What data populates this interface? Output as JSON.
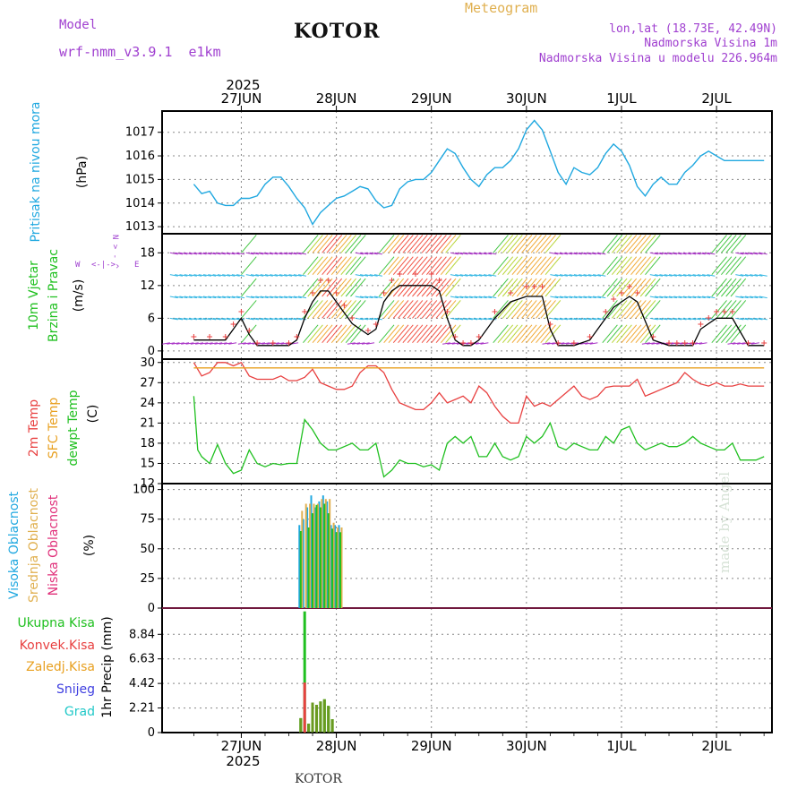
{
  "header": {
    "model_label": "Model",
    "model_name": "wrf-nmm_v3.9.1  e1km",
    "station": "KOTOR",
    "product": "Meteogram",
    "coords": "lon,lat (18.73E, 42.49N)",
    "elevation": "Nadmorska Visina 1m",
    "model_elevation": "Nadmorska Visina u modelu 226.964m",
    "watermark": "made by Angel",
    "footer_station": "KOTOR"
  },
  "colors": {
    "purple": "#a040d0",
    "gold": "#e0b050",
    "pressure": "#20a8e0",
    "temp": "#e84040",
    "sfc": "#e8a020",
    "dewpt": "#20c020",
    "wind_black": "#000000"
  },
  "chart_data": [
    {
      "type": "line",
      "id": "pressure",
      "ylabel": [
        "Pritisak na nivou mora",
        "(hPa)"
      ],
      "yticks": [
        1013,
        1014,
        1015,
        1016,
        1017
      ],
      "ylim": [
        1012.7,
        1017.9
      ],
      "grid": true,
      "series": [
        {
          "name": "pressure",
          "color": "#20a8e0",
          "x": [
            0,
            2,
            4,
            6,
            8,
            10,
            12,
            14,
            16,
            18,
            20,
            22,
            24,
            26,
            28,
            30,
            32,
            34,
            36,
            38,
            40,
            42,
            44,
            46,
            48,
            50,
            52,
            54,
            56,
            58,
            60,
            62,
            64,
            66,
            68,
            70,
            72,
            74,
            76,
            78,
            80,
            82,
            84,
            86,
            88,
            90,
            92,
            94,
            96,
            98,
            100,
            102,
            104,
            106,
            108,
            110,
            112,
            114,
            116,
            118,
            120,
            122,
            124,
            126,
            128,
            130,
            132,
            134,
            136,
            138,
            140,
            142,
            144
          ],
          "values": [
            1014.8,
            1014.4,
            1014.5,
            1014.0,
            1013.9,
            1013.9,
            1014.2,
            1014.2,
            1014.3,
            1014.8,
            1015.1,
            1015.1,
            1014.7,
            1014.2,
            1013.8,
            1013.1,
            1013.6,
            1013.9,
            1014.2,
            1014.3,
            1014.5,
            1014.7,
            1014.6,
            1014.1,
            1013.8,
            1013.9,
            1014.6,
            1014.9,
            1015.0,
            1015.0,
            1015.3,
            1015.8,
            1016.3,
            1016.1,
            1015.5,
            1015.0,
            1014.7,
            1015.2,
            1015.5,
            1015.5,
            1015.8,
            1016.3,
            1017.1,
            1017.5,
            1017.1,
            1016.2,
            1015.3,
            1014.8,
            1015.5,
            1015.3,
            1015.2,
            1015.5,
            1016.1,
            1016.5,
            1016.2,
            1015.6,
            1014.7,
            1014.3,
            1014.8,
            1015.1,
            1014.8,
            1014.8,
            1015.3,
            1015.6,
            1016.0,
            1016.2,
            1016.0,
            1015.8,
            1015.8,
            1015.8,
            1015.8,
            1015.8,
            1015.8
          ]
        }
      ]
    },
    {
      "type": "line",
      "id": "wind",
      "ylabel": [
        "10m Vjetar",
        "Brzina i Pravac",
        "(m/s)"
      ],
      "direction_labels": [
        "W",
        "<",
        "|",
        ">",
        "E",
        "N",
        "S"
      ],
      "yticks": [
        0,
        6,
        12,
        18
      ],
      "ylim": [
        -1.5,
        21.5
      ],
      "grid": true,
      "series": [
        {
          "name": "wind speed",
          "color": "#000000",
          "x": [
            0,
            4,
            8,
            10,
            12,
            14,
            16,
            20,
            24,
            26,
            28,
            30,
            32,
            34,
            36,
            38,
            40,
            44,
            46,
            48,
            50,
            52,
            56,
            60,
            62,
            64,
            66,
            68,
            70,
            72,
            76,
            80,
            84,
            86,
            88,
            90,
            92,
            96,
            100,
            104,
            106,
            108,
            110,
            112,
            116,
            120,
            122,
            124,
            126,
            128,
            130,
            132,
            134,
            136,
            140,
            144
          ],
          "values": [
            2,
            2,
            2,
            4,
            6,
            3,
            1,
            1,
            1,
            2,
            6,
            9,
            11,
            11,
            9,
            7,
            5,
            3,
            4,
            9,
            11,
            12,
            12,
            12,
            11,
            6,
            2,
            1,
            1,
            2,
            6,
            9,
            10,
            10,
            10,
            4,
            1,
            1,
            2,
            6,
            8,
            9,
            10,
            9,
            2,
            1,
            1,
            1,
            1,
            4,
            5,
            6,
            6,
            6,
            1,
            1
          ]
        }
      ]
    },
    {
      "type": "line",
      "id": "temperature",
      "ylabel": [
        "2m Temp",
        "SFC Temp",
        "dewpt Temp",
        "(C)"
      ],
      "yticks": [
        12,
        15,
        18,
        21,
        24,
        27,
        30
      ],
      "ylim": [
        12,
        30.5
      ],
      "grid": true,
      "series": [
        {
          "name": "2m Temp",
          "color": "#e84040",
          "x": [
            0,
            2,
            4,
            6,
            8,
            10,
            12,
            14,
            16,
            18,
            20,
            22,
            24,
            26,
            28,
            30,
            32,
            34,
            36,
            38,
            40,
            42,
            44,
            46,
            48,
            50,
            52,
            54,
            56,
            58,
            60,
            62,
            64,
            66,
            68,
            70,
            72,
            74,
            76,
            78,
            80,
            82,
            84,
            86,
            88,
            90,
            92,
            94,
            96,
            98,
            100,
            102,
            104,
            106,
            108,
            110,
            112,
            114,
            116,
            118,
            120,
            122,
            124,
            126,
            128,
            130,
            132,
            134,
            136,
            138,
            140,
            142,
            144
          ],
          "values": [
            30,
            28,
            28.5,
            30,
            30,
            29.5,
            30,
            28,
            27.5,
            27.5,
            27.5,
            28,
            27.3,
            27.3,
            27.8,
            29,
            27,
            26.5,
            26,
            26,
            26.5,
            28.5,
            29.5,
            29.5,
            28.5,
            26,
            24,
            23.5,
            23,
            23,
            24,
            25.5,
            24,
            24.5,
            25,
            24,
            26.5,
            25.5,
            23.5,
            22,
            21,
            21,
            25,
            23.5,
            24,
            23.5,
            24.5,
            25.5,
            26.5,
            25,
            24.5,
            25,
            26.3,
            26.5,
            26.5,
            26.5,
            27.5,
            25,
            25.5,
            26,
            26.5,
            27,
            28.5,
            27.5,
            26.8,
            26.5,
            27,
            26.5,
            26.5,
            26.8,
            26.5,
            26.5,
            26.5
          ]
        },
        {
          "name": "SFC Temp",
          "color": "#e8a020",
          "x": [
            0,
            144
          ],
          "values": [
            29.2,
            29.2
          ]
        },
        {
          "name": "dewpt Temp",
          "color": "#20c020",
          "x": [
            0,
            1,
            2,
            4,
            6,
            8,
            10,
            12,
            14,
            16,
            18,
            20,
            22,
            24,
            26,
            28,
            30,
            32,
            34,
            36,
            38,
            40,
            42,
            44,
            46,
            48,
            50,
            52,
            54,
            56,
            58,
            60,
            62,
            64,
            66,
            68,
            70,
            72,
            74,
            76,
            78,
            80,
            82,
            84,
            86,
            88,
            90,
            92,
            94,
            96,
            98,
            100,
            102,
            104,
            106,
            108,
            110,
            112,
            114,
            116,
            118,
            120,
            122,
            124,
            126,
            128,
            130,
            132,
            134,
            136,
            138,
            140,
            142,
            144
          ],
          "values": [
            25,
            17,
            16,
            15,
            17.8,
            15,
            13.5,
            14,
            17,
            15,
            14.5,
            15,
            14.8,
            15,
            15,
            21.5,
            20,
            18,
            17,
            17,
            17.5,
            18,
            17,
            17,
            18,
            13,
            14,
            15.5,
            15,
            15,
            14.5,
            14.8,
            14,
            18,
            19,
            18,
            19,
            16,
            16,
            18,
            16,
            15.5,
            16,
            19,
            18,
            19,
            21,
            17.5,
            17,
            18,
            17.5,
            17,
            17,
            19,
            18,
            20,
            20.5,
            18,
            17,
            17.5,
            18,
            17.5,
            17.5,
            18,
            19,
            18,
            17.5,
            17,
            17,
            18,
            15.5,
            15.5,
            15.5,
            16
          ]
        }
      ]
    },
    {
      "type": "bar",
      "id": "cloud",
      "ylabel": [
        "Visoka Oblacnost",
        "Srednja Oblacnost",
        "Niska Oblacnost",
        "(%)"
      ],
      "yticks": [
        0,
        25,
        50,
        75,
        100
      ],
      "ylim": [
        0,
        105
      ],
      "grid": true,
      "series": [
        {
          "name": "Visoka Oblacnost",
          "color": "#20a8e0",
          "x": [
            27,
            28,
            29,
            30,
            31,
            32,
            33,
            34,
            35,
            36,
            37
          ],
          "values": [
            70,
            75,
            85,
            95,
            85,
            90,
            95,
            90,
            70,
            70,
            70
          ]
        },
        {
          "name": "Srednja Oblacnost",
          "color": "#e0b050",
          "x": [
            27,
            28,
            29,
            30,
            31,
            32,
            33,
            34,
            35,
            36,
            37
          ],
          "values": [
            82,
            88,
            88,
            88,
            88,
            92,
            92,
            92,
            72,
            68,
            68
          ]
        },
        {
          "name": "Niska Oblacnost",
          "color": "#20c020",
          "x": [
            27,
            28,
            29,
            30,
            31,
            32,
            33,
            34,
            35,
            36,
            37
          ],
          "values": [
            65,
            0,
            68,
            80,
            87,
            85,
            88,
            80,
            67,
            64,
            64
          ]
        }
      ]
    },
    {
      "type": "bar",
      "id": "precip",
      "ylabel": [
        "1hr Precip (mm)"
      ],
      "legend": [
        "Ukupna Kisa",
        "Konvek.Kisa",
        "Zaledj.Kisa",
        "Snijeg",
        "Grad"
      ],
      "legend_colors": [
        "#20c020",
        "#e84040",
        "#e8a020",
        "#4040e0",
        "#20c8c8"
      ],
      "yticks": [
        0,
        2.21,
        4.42,
        6.63,
        8.84
      ],
      "ylim": [
        0,
        11.2
      ],
      "grid": true,
      "series": [
        {
          "name": "Ukupna Kisa",
          "color": "#20c020",
          "x": [
            27,
            28,
            29,
            30,
            31,
            32,
            33,
            34,
            35,
            36
          ],
          "values": [
            1.3,
            10.9,
            0.8,
            2.7,
            2.5,
            2.8,
            3.0,
            2.4,
            1.2,
            0
          ]
        },
        {
          "name": "Konvek.Kisa",
          "color": "#e84040",
          "x": [
            28
          ],
          "values": [
            4.5
          ]
        },
        {
          "name": "Mixed",
          "color": "#6a9a20",
          "x": [
            27,
            29,
            30,
            31,
            32,
            33,
            34,
            35
          ],
          "values": [
            1.3,
            0.8,
            2.7,
            2.5,
            2.8,
            3.0,
            2.4,
            1.2
          ]
        }
      ]
    }
  ],
  "xaxis": {
    "year_top": "2025",
    "year_bottom": "2025",
    "days": [
      "27JUN",
      "28JUN",
      "29JUN",
      "30JUN",
      "1JUL",
      "2JUL"
    ],
    "day_hours": [
      12,
      36,
      60,
      84,
      108,
      132
    ]
  }
}
